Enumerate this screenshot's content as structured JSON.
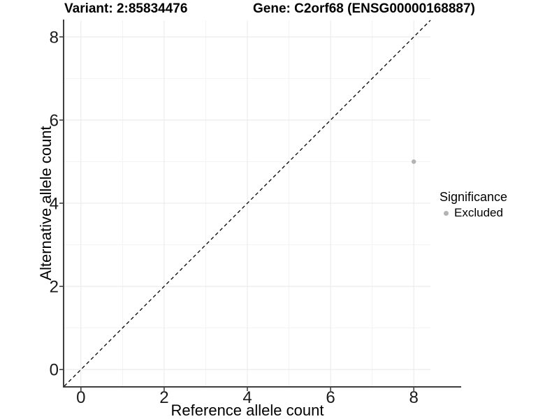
{
  "chart_data": {
    "type": "scatter",
    "titles": {
      "left": "Variant: 2:85834476",
      "right": "Gene: C2orf68 (ENSG00000168887)"
    },
    "xlabel": "Reference allele count",
    "ylabel": "Alternative allele count",
    "xlim": [
      -0.4,
      8.4
    ],
    "ylim": [
      -0.4,
      8.4
    ],
    "x_ticks": [
      0,
      2,
      4,
      6,
      8
    ],
    "y_ticks": [
      0,
      2,
      4,
      6,
      8
    ],
    "x_minor_ticks": [
      1,
      3,
      5,
      7
    ],
    "y_minor_ticks": [
      1,
      3,
      5,
      7
    ],
    "grid": "major+minor",
    "identity_line": {
      "slope": 1,
      "intercept": 0,
      "style": "dashed",
      "color": "#000000"
    },
    "series": [
      {
        "name": "Excluded",
        "color": "#b3b3b3",
        "points": [
          {
            "x": 8,
            "y": 5
          }
        ]
      }
    ],
    "legend": {
      "title": "Significance",
      "position": "right",
      "entries": [
        {
          "label": "Excluded",
          "color": "#b3b3b3"
        }
      ]
    }
  },
  "colors": {
    "background": "#ffffff",
    "grid_major": "#e8e8e8",
    "grid_minor": "#f3f3f3",
    "axis_line": "#3f3f3f",
    "tick_mark": "#333333",
    "tick_label": "#1a1a1a",
    "title_text": "#000000"
  }
}
